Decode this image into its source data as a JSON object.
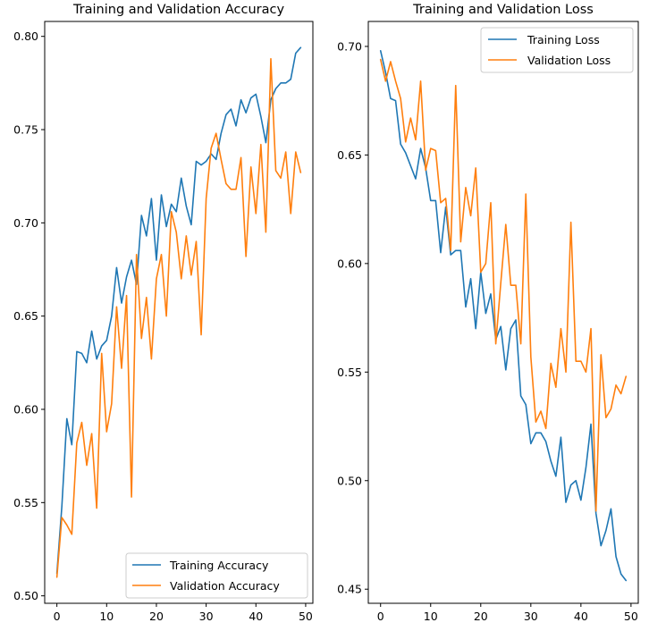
{
  "chart_data": [
    {
      "type": "line",
      "title": "Training and Validation Accuracy",
      "xlabel": "",
      "ylabel": "",
      "xlim": [
        -2.45,
        51.45
      ],
      "ylim": [
        0.496,
        0.808
      ],
      "xticks": [
        0,
        10,
        20,
        30,
        40,
        50
      ],
      "xtick_labels": [
        "0",
        "10",
        "20",
        "30",
        "40",
        "50"
      ],
      "yticks": [
        0.5,
        0.55,
        0.6,
        0.65,
        0.7,
        0.75,
        0.8
      ],
      "ytick_labels": [
        "0.50",
        "0.55",
        "0.60",
        "0.65",
        "0.70",
        "0.75",
        "0.80"
      ],
      "legend_position": "lower-right",
      "grid": false,
      "x": [
        0,
        1,
        2,
        3,
        4,
        5,
        6,
        7,
        8,
        9,
        10,
        11,
        12,
        13,
        14,
        15,
        16,
        17,
        18,
        19,
        20,
        21,
        22,
        23,
        24,
        25,
        26,
        27,
        28,
        29,
        30,
        31,
        32,
        33,
        34,
        35,
        36,
        37,
        38,
        39,
        40,
        41,
        42,
        43,
        44,
        45,
        46,
        47,
        48,
        49
      ],
      "series": [
        {
          "name": "Training Accuracy",
          "color": "#1f77b4",
          "values": [
            0.512,
            0.548,
            0.595,
            0.581,
            0.631,
            0.63,
            0.625,
            0.642,
            0.627,
            0.634,
            0.637,
            0.65,
            0.676,
            0.657,
            0.671,
            0.68,
            0.667,
            0.704,
            0.693,
            0.713,
            0.68,
            0.715,
            0.698,
            0.71,
            0.706,
            0.724,
            0.709,
            0.699,
            0.733,
            0.731,
            0.733,
            0.737,
            0.734,
            0.748,
            0.758,
            0.761,
            0.752,
            0.766,
            0.759,
            0.767,
            0.769,
            0.757,
            0.743,
            0.766,
            0.772,
            0.775,
            0.775,
            0.777,
            0.791,
            0.794
          ]
        },
        {
          "name": "Validation Accuracy",
          "color": "#ff7f0e",
          "values": [
            0.51,
            0.542,
            0.538,
            0.533,
            0.582,
            0.593,
            0.57,
            0.587,
            0.547,
            0.63,
            0.588,
            0.603,
            0.655,
            0.622,
            0.661,
            0.553,
            0.683,
            0.638,
            0.66,
            0.627,
            0.67,
            0.683,
            0.65,
            0.706,
            0.695,
            0.67,
            0.693,
            0.672,
            0.69,
            0.64,
            0.713,
            0.74,
            0.748,
            0.734,
            0.721,
            0.718,
            0.718,
            0.735,
            0.682,
            0.73,
            0.705,
            0.742,
            0.695,
            0.788,
            0.728,
            0.724,
            0.738,
            0.705,
            0.738,
            0.727
          ]
        }
      ]
    },
    {
      "type": "line",
      "title": "Training and Validation Loss",
      "xlabel": "",
      "ylabel": "",
      "xlim": [
        -2.45,
        51.45
      ],
      "ylim": [
        0.4435,
        0.7115
      ],
      "xticks": [
        0,
        10,
        20,
        30,
        40,
        50
      ],
      "xtick_labels": [
        "0",
        "10",
        "20",
        "30",
        "40",
        "50"
      ],
      "yticks": [
        0.45,
        0.5,
        0.55,
        0.6,
        0.65,
        0.7
      ],
      "ytick_labels": [
        "0.45",
        "0.50",
        "0.55",
        "0.60",
        "0.65",
        "0.70"
      ],
      "legend_position": "upper-right",
      "grid": false,
      "x": [
        0,
        1,
        2,
        3,
        4,
        5,
        6,
        7,
        8,
        9,
        10,
        11,
        12,
        13,
        14,
        15,
        16,
        17,
        18,
        19,
        20,
        21,
        22,
        23,
        24,
        25,
        26,
        27,
        28,
        29,
        30,
        31,
        32,
        33,
        34,
        35,
        36,
        37,
        38,
        39,
        40,
        41,
        42,
        43,
        44,
        45,
        46,
        47,
        48,
        49
      ],
      "series": [
        {
          "name": "Training Loss",
          "color": "#1f77b4",
          "values": [
            0.698,
            0.688,
            0.676,
            0.675,
            0.655,
            0.651,
            0.645,
            0.639,
            0.653,
            0.644,
            0.629,
            0.629,
            0.605,
            0.626,
            0.604,
            0.606,
            0.606,
            0.58,
            0.593,
            0.57,
            0.596,
            0.577,
            0.586,
            0.565,
            0.571,
            0.551,
            0.57,
            0.574,
            0.539,
            0.535,
            0.517,
            0.522,
            0.522,
            0.518,
            0.509,
            0.502,
            0.52,
            0.49,
            0.498,
            0.5,
            0.491,
            0.506,
            0.526,
            0.485,
            0.47,
            0.477,
            0.487,
            0.465,
            0.457,
            0.454
          ]
        },
        {
          "name": "Validation Loss",
          "color": "#ff7f0e",
          "values": [
            0.694,
            0.684,
            0.693,
            0.684,
            0.676,
            0.656,
            0.667,
            0.657,
            0.684,
            0.643,
            0.653,
            0.652,
            0.628,
            0.63,
            0.606,
            0.682,
            0.61,
            0.635,
            0.622,
            0.644,
            0.596,
            0.6,
            0.628,
            0.563,
            0.591,
            0.618,
            0.59,
            0.59,
            0.563,
            0.632,
            0.557,
            0.527,
            0.532,
            0.524,
            0.554,
            0.543,
            0.57,
            0.55,
            0.619,
            0.555,
            0.555,
            0.55,
            0.57,
            0.486,
            0.558,
            0.529,
            0.533,
            0.544,
            0.54,
            0.548
          ]
        }
      ]
    }
  ]
}
